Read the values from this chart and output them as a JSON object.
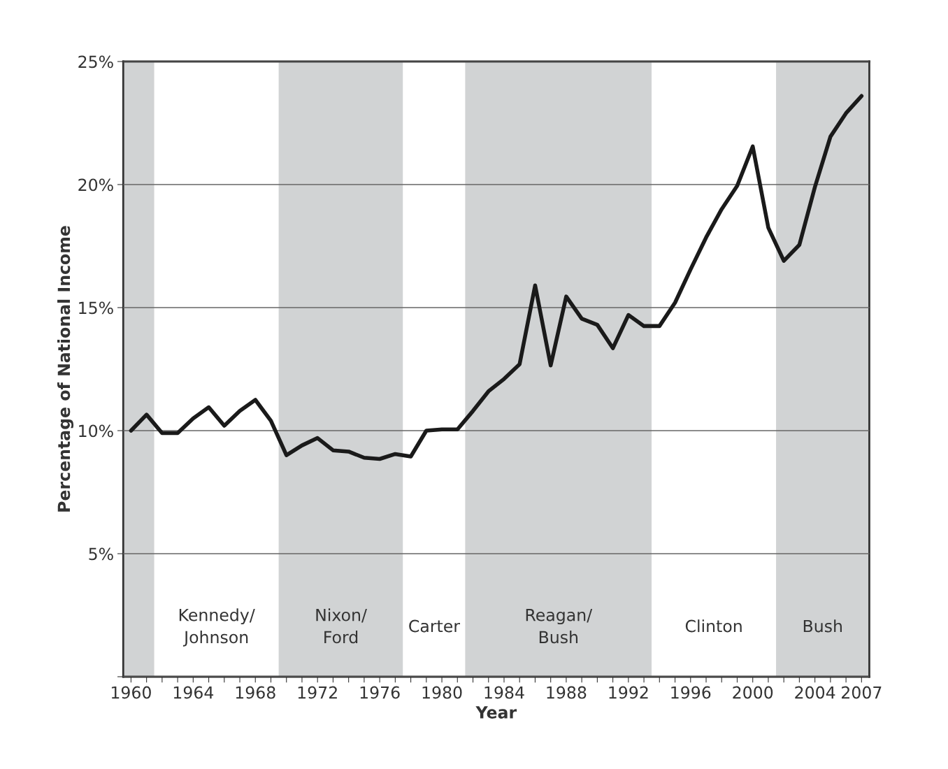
{
  "chart_data": {
    "type": "line",
    "xlabel": "Year",
    "ylabel": "Percentage of National Income",
    "x": [
      1960,
      1961,
      1962,
      1963,
      1964,
      1965,
      1966,
      1967,
      1968,
      1969,
      1970,
      1971,
      1972,
      1973,
      1974,
      1975,
      1976,
      1977,
      1978,
      1979,
      1980,
      1981,
      1982,
      1983,
      1984,
      1985,
      1986,
      1987,
      1988,
      1989,
      1990,
      1991,
      1992,
      1993,
      1994,
      1995,
      1996,
      1997,
      1998,
      1999,
      2000,
      2001,
      2002,
      2003,
      2004,
      2005,
      2006,
      2007
    ],
    "series": [
      {
        "color": "#1a1a1a",
        "values": [
          10.0,
          10.65,
          9.9,
          9.9,
          10.5,
          10.95,
          10.2,
          10.8,
          11.25,
          10.4,
          9.0,
          9.4,
          9.7,
          9.2,
          9.15,
          8.9,
          8.85,
          9.05,
          8.95,
          10.0,
          10.05,
          10.05,
          10.8,
          11.6,
          12.1,
          12.7,
          15.9,
          12.65,
          15.45,
          14.55,
          14.3,
          13.35,
          14.7,
          14.25,
          14.25,
          15.2,
          16.55,
          17.85,
          19.0,
          19.95,
          21.55,
          18.25,
          16.9,
          17.55,
          19.9,
          21.95,
          22.9,
          23.6
        ]
      }
    ],
    "xlim": [
      1959.5,
      2007.5
    ],
    "xticks": [
      1960,
      {
        "value": 1961,
        "label": null
      },
      {
        "value": 1962,
        "label": null
      },
      {
        "value": 1963,
        "label": null
      },
      1964,
      {
        "value": 1965,
        "label": null
      },
      {
        "value": 1966,
        "label": null
      },
      {
        "value": 1967,
        "label": null
      },
      1968,
      {
        "value": 1969,
        "label": null
      },
      {
        "value": 1970,
        "label": null
      },
      {
        "value": 1971,
        "label": null
      },
      1972,
      {
        "value": 1973,
        "label": null
      },
      {
        "value": 1974,
        "label": null
      },
      {
        "value": 1975,
        "label": null
      },
      1976,
      {
        "value": 1977,
        "label": null
      },
      {
        "value": 1978,
        "label": null
      },
      {
        "value": 1979,
        "label": null
      },
      1980,
      {
        "value": 1981,
        "label": null
      },
      {
        "value": 1982,
        "label": null
      },
      {
        "value": 1983,
        "label": null
      },
      1984,
      {
        "value": 1985,
        "label": null
      },
      {
        "value": 1986,
        "label": null
      },
      {
        "value": 1987,
        "label": null
      },
      1988,
      {
        "value": 1989,
        "label": null
      },
      {
        "value": 1990,
        "label": null
      },
      {
        "value": 1991,
        "label": null
      },
      1992,
      {
        "value": 1993,
        "label": null
      },
      {
        "value": 1994,
        "label": null
      },
      {
        "value": 1995,
        "label": null
      },
      1996,
      {
        "value": 1997,
        "label": null
      },
      {
        "value": 1998,
        "label": null
      },
      {
        "value": 1999,
        "label": null
      },
      2000,
      {
        "value": 2001,
        "label": null
      },
      {
        "value": 2002,
        "label": null
      },
      {
        "value": 2003,
        "label": null
      },
      2004,
      {
        "value": 2005,
        "label": null
      },
      {
        "value": 2006,
        "label": null
      },
      2007
    ],
    "ylim": [
      0,
      25
    ],
    "yticks": [
      {
        "value": 0,
        "label": null
      },
      {
        "value": 5,
        "label": "5%"
      },
      {
        "value": 10,
        "label": "10%"
      },
      {
        "value": 15,
        "label": "15%"
      },
      {
        "value": 20,
        "label": "20%"
      },
      {
        "value": 25,
        "label": "25%"
      }
    ],
    "grid": "y",
    "marker": "none",
    "line_style": "solid",
    "bands": [
      {
        "axis": "x",
        "from": 1959.5,
        "to": 1961.5,
        "color": "#d1d3d4"
      },
      {
        "axis": "x",
        "from": 1961.5,
        "to": 1969.5,
        "label": "Kennedy/\nJohnson",
        "color": "#ffffff"
      },
      {
        "axis": "x",
        "from": 1969.5,
        "to": 1977.5,
        "label": "Nixon/\nFord",
        "color": "#d1d3d4"
      },
      {
        "axis": "x",
        "from": 1977.5,
        "to": 1981.5,
        "label": "Carter",
        "color": "#ffffff"
      },
      {
        "axis": "x",
        "from": 1981.5,
        "to": 1993.5,
        "label": "Reagan/\nBush",
        "color": "#d1d3d4"
      },
      {
        "axis": "x",
        "from": 1993.5,
        "to": 2001.5,
        "label": "Clinton",
        "color": "#ffffff"
      },
      {
        "axis": "x",
        "from": 2001.5,
        "to": 2007.5,
        "label": "Bush",
        "color": "#d1d3d4"
      }
    ]
  }
}
